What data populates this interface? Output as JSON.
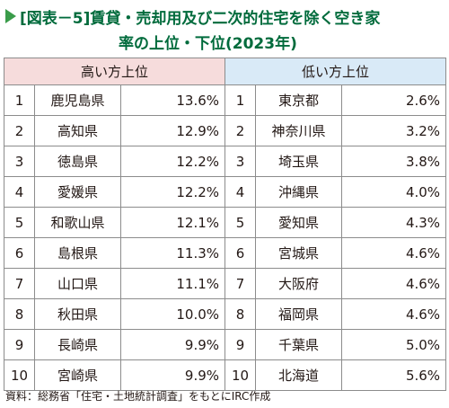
{
  "title": {
    "line1": "[図表－5]賃貸・売却用及び二次的住宅を除く空き家",
    "line2": "率の上位・下位(2023年)"
  },
  "headers": {
    "high": "高い方上位",
    "low": "低い方上位"
  },
  "high": [
    {
      "rank": "1",
      "pref": "鹿児島県",
      "value": "13.6%"
    },
    {
      "rank": "2",
      "pref": "高知県",
      "value": "12.9%"
    },
    {
      "rank": "3",
      "pref": "徳島県",
      "value": "12.2%"
    },
    {
      "rank": "4",
      "pref": "愛媛県",
      "value": "12.2%"
    },
    {
      "rank": "5",
      "pref": "和歌山県",
      "value": "12.1%"
    },
    {
      "rank": "6",
      "pref": "島根県",
      "value": "11.3%"
    },
    {
      "rank": "7",
      "pref": "山口県",
      "value": "11.1%"
    },
    {
      "rank": "8",
      "pref": "秋田県",
      "value": "10.0%"
    },
    {
      "rank": "9",
      "pref": "長崎県",
      "value": "9.9%"
    },
    {
      "rank": "10",
      "pref": "宮崎県",
      "value": "9.9%"
    }
  ],
  "low": [
    {
      "rank": "1",
      "pref": "東京都",
      "value": "2.6%"
    },
    {
      "rank": "2",
      "pref": "神奈川県",
      "value": "3.2%"
    },
    {
      "rank": "3",
      "pref": "埼玉県",
      "value": "3.8%"
    },
    {
      "rank": "4",
      "pref": "沖縄県",
      "value": "4.0%"
    },
    {
      "rank": "5",
      "pref": "愛知県",
      "value": "4.3%"
    },
    {
      "rank": "6",
      "pref": "宮城県",
      "value": "4.6%"
    },
    {
      "rank": "7",
      "pref": "大阪府",
      "value": "4.6%"
    },
    {
      "rank": "8",
      "pref": "福岡県",
      "value": "4.6%"
    },
    {
      "rank": "9",
      "pref": "千葉県",
      "value": "5.0%"
    },
    {
      "rank": "10",
      "pref": "北海道",
      "value": "5.6%"
    }
  ],
  "source": "資料：総務省「住宅・土地統計調査」をもとにIRC作成",
  "colors": {
    "title": "#006b3c",
    "header_high": "#f6dcdc",
    "header_low": "#d9eaf7"
  }
}
